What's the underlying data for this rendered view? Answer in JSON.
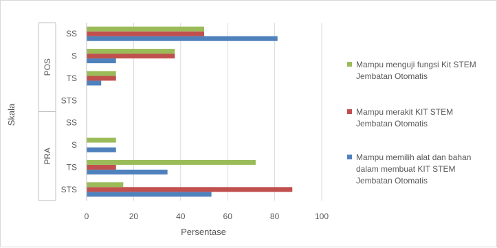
{
  "chart_data": {
    "type": "bar",
    "orientation": "horizontal",
    "xlabel": "Persentase",
    "ylabel": "Skala",
    "xlim": [
      0,
      100
    ],
    "xticks": [
      0,
      20,
      40,
      60,
      80,
      100
    ],
    "grid": "vertical",
    "legend_position": "right",
    "groups": [
      {
        "name": "POS",
        "categories": [
          "SS",
          "S",
          "TS",
          "STS"
        ]
      },
      {
        "name": "PRA",
        "categories": [
          "SS",
          "S",
          "TS",
          "STS"
        ]
      }
    ],
    "series": [
      {
        "name": "Mampu memilih alat dan bahan dalam membuat KIT STEM Jembatan Otomatis",
        "legend_lines": [
          "Mampu memilih alat dan bahan",
          "dalam membuat KIT STEM",
          "Jembatan Otomatis"
        ],
        "color": "#4f81bd",
        "values": [
          81.2,
          12.5,
          6.2,
          0,
          0,
          12.5,
          34.4,
          53.1
        ]
      },
      {
        "name": "Mampu merakit KIT STEM Jembatan Otomatis",
        "legend_lines": [
          "Mampu merakit KIT STEM",
          "Jembatan Otomatis"
        ],
        "color": "#c0504d",
        "values": [
          50,
          37.5,
          12.5,
          0,
          0,
          0,
          12.5,
          87.5
        ]
      },
      {
        "name": "Mampu menguji fungsi Kit STEM Jembatan Otomatis",
        "legend_lines": [
          "Mampu menguji fungsi Kit STEM",
          "Jembatan Otomatis"
        ],
        "color": "#9bbb59",
        "values": [
          50,
          37.5,
          12.5,
          0,
          0,
          12.5,
          71.9,
          15.6
        ]
      }
    ]
  }
}
